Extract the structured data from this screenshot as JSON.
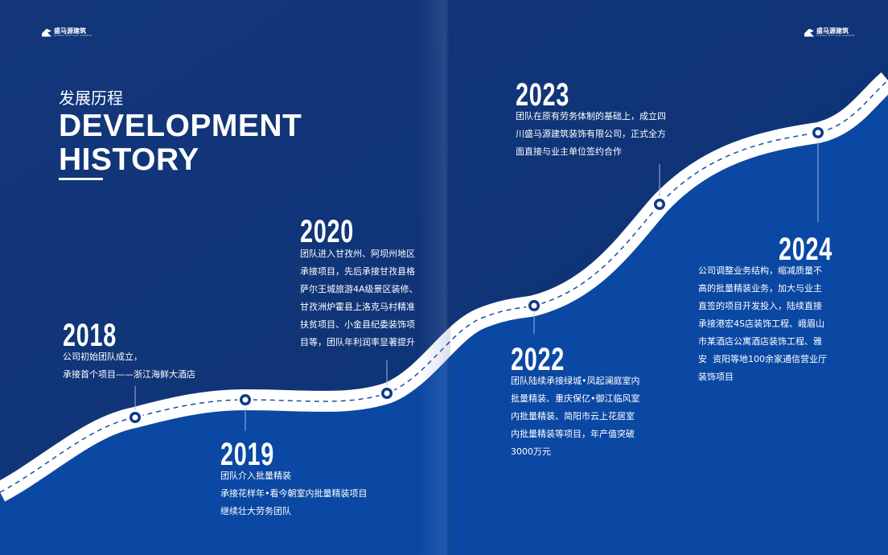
{
  "logos": {
    "left": {
      "cn": "盛马源建筑",
      "en": "SHENG MAYUAN JIANZHU"
    },
    "right": {
      "cn": "盛马源建筑",
      "en": "SHENG MAYUAN JIANZHU"
    }
  },
  "title": {
    "cn": "发展历程",
    "en_line1": "DEVELOPMENT",
    "en_line2": "HISTORY"
  },
  "colors": {
    "dark_bg": "#0e3477",
    "bright_bg": "#0a48a3",
    "road": "#ffffff",
    "road_dash": "#1a4fa6"
  },
  "milestones": [
    {
      "year": "2018",
      "lines": [
        "公司初始团队成立，",
        "承接首个项目——浙江海鲜大酒店"
      ]
    },
    {
      "year": "2019",
      "lines": [
        "团队介入批量精装",
        "承接花样年•看今朝室内批量精装项目",
        "继续壮大劳务团队"
      ]
    },
    {
      "year": "2020",
      "lines": [
        "团队进入甘孜州、阿坝州地区",
        "承接项目，先后承接甘孜县格",
        "萨尔王城旅游4A级景区装修、",
        "甘孜洲炉霍县上洛克马村精准",
        "扶贫项目、小金县纪委装饰项",
        "目等，团队年利润率显著提升"
      ]
    },
    {
      "year": "2022",
      "lines": [
        "团队陆续承接绿城•凤起澜庭室内",
        "批量精装、重庆保亿•御江临风室",
        "内批量精装、简阳市云上花居室",
        "内批量精装等项目，年产值突破",
        "3000万元"
      ]
    },
    {
      "year": "2023",
      "lines": [
        "团队在原有劳务体制的基础上，成立四",
        "川盛马源建筑装饰有限公司，正式全方",
        "面直接与业主单位签约合作"
      ]
    },
    {
      "year": "2024",
      "lines": [
        "公司调整业务结构，缩减质量不",
        "高的批量精装业务，加大与业主",
        "直签的项目开发投入，陆续直接",
        "承接港宏4S店装饰工程、峨眉山",
        "市某酒店公寓酒店装饰工程、雅",
        "安  资阳等地100余家通信营业厅",
        "装饰项目"
      ]
    }
  ]
}
